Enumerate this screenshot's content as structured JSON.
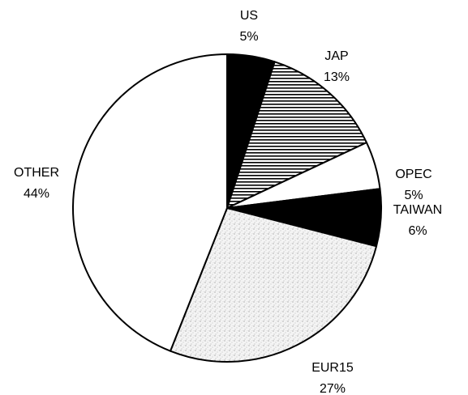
{
  "chart_data": {
    "type": "pie",
    "categories": [
      "US",
      "JAP",
      "OPEC",
      "TAIWAN",
      "EUR15",
      "OTHER"
    ],
    "values": [
      5,
      13,
      5,
      6,
      27,
      44
    ],
    "value_labels": [
      "5%",
      "13%",
      "5%",
      "6%",
      "27%",
      "44%"
    ],
    "fills": [
      "#000000",
      "horizontal-lines",
      "#ffffff",
      "#000000",
      "stipple",
      "#ffffff"
    ]
  }
}
